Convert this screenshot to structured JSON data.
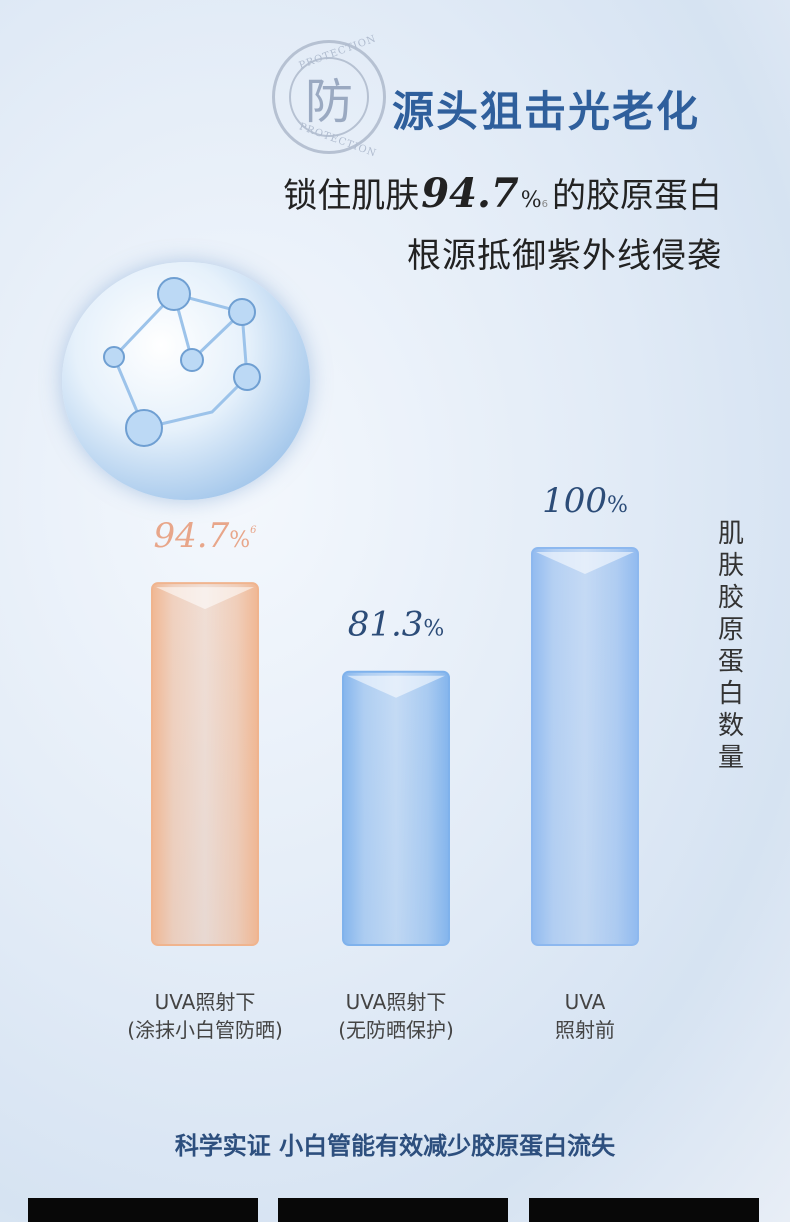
{
  "header": {
    "stamp_char": "防",
    "stamp_ring_text": "PROTECTION",
    "title": "源头狙击光老化",
    "subtitle_line1_prefix": "锁住肌肤",
    "subtitle_line1_number": "94.7",
    "subtitle_line1_percent": "%",
    "subtitle_line1_footnote": "6",
    "subtitle_line1_suffix": "的胶原蛋白",
    "subtitle_line2": "根源抵御紫外线侵袭"
  },
  "chart_data": {
    "type": "bar",
    "categories": [
      "UVA照射下\n(涂抹小白管防晒)",
      "UVA照射下\n(无防晒保护)",
      "UVA\n照射前"
    ],
    "category_lines": [
      [
        "UVA照射下",
        "(涂抹小白管防晒)"
      ],
      [
        "UVA照射下",
        "(无防晒保护)"
      ],
      [
        "UVA",
        "照射前"
      ]
    ],
    "values": [
      94.7,
      81.3,
      100
    ],
    "data_labels": [
      "94.7",
      "81.3",
      "100"
    ],
    "data_label_unit": "%",
    "data_label_footnotes": [
      "6",
      "",
      ""
    ],
    "ylabel": "肌肤胶原蛋白数量",
    "colors": [
      "#f0b48e",
      "#7fb2ec",
      "#8db8ef"
    ],
    "label_colors": [
      "#e8a68a",
      "#2c4c78",
      "#2c4c78"
    ],
    "grid": false
  },
  "footer": {
    "caption": "科学实证 小白管能有效减少胶原蛋白流失"
  }
}
